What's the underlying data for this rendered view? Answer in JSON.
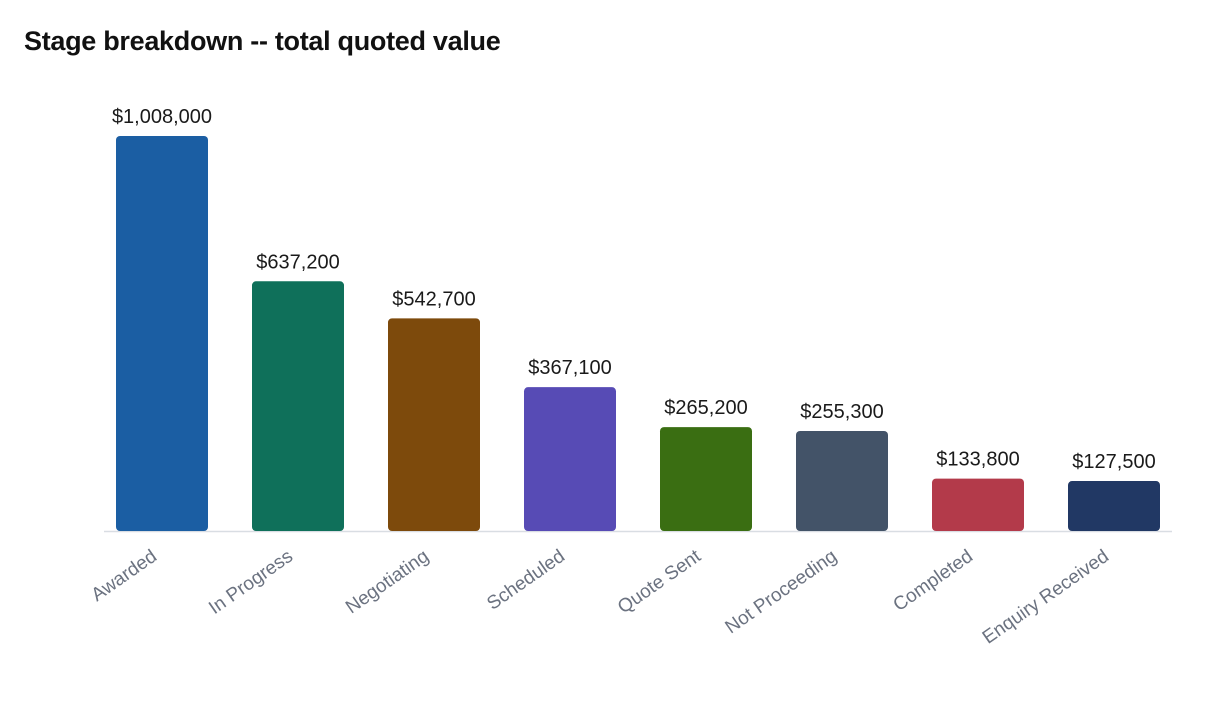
{
  "title": "Stage breakdown -- total quoted value",
  "chart_data": {
    "type": "bar",
    "title": "Stage breakdown -- total quoted value",
    "xlabel": "",
    "ylabel": "",
    "categories": [
      "Awarded",
      "In Progress",
      "Negotiating",
      "Scheduled",
      "Quote Sent",
      "Not Proceeding",
      "Completed",
      "Enquiry Received"
    ],
    "values": [
      1008000,
      637200,
      542700,
      367100,
      265200,
      255300,
      133800,
      127500
    ],
    "value_labels": [
      "$1,008,000",
      "$637,200",
      "$542,700",
      "$367,100",
      "$265,200",
      "$255,300",
      "$133,800",
      "$127,500"
    ],
    "colors": [
      "#1b5ea3",
      "#0f705a",
      "#7d4a0c",
      "#574bb5",
      "#3a6e12",
      "#435368",
      "#b33a4a",
      "#213864"
    ],
    "ylim": [
      0,
      1008000
    ],
    "grid": false,
    "legend": "none"
  }
}
